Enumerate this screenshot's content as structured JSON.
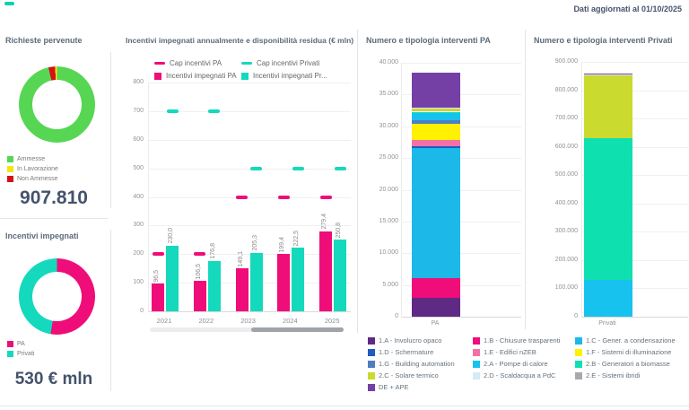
{
  "header": {
    "updated_text": "Dati aggiornati al 01/10/2025"
  },
  "colors": {
    "accent_teal": "#00d3b0",
    "pink": "#ef0d79",
    "teal": "#14d9bd",
    "green": "#57d653",
    "yellow": "#f2e713",
    "red": "#d41114",
    "title_text": "#5b6b7b",
    "big_number_text": "#44536b"
  },
  "chart_data": [
    {
      "type": "pie",
      "title": "Richieste pervenute",
      "total": "907.810",
      "slices": [
        {
          "label": "Ammesse",
          "pct": 96.4,
          "color": "#57d653"
        },
        {
          "label": "Non Ammesse",
          "pct": 2.8,
          "color": "#d41114"
        },
        {
          "label": "In Lavorazione",
          "pct": 0.8,
          "color": "#f2e713"
        }
      ],
      "legend": [
        {
          "label": "Ammesse",
          "color": "#57d653"
        },
        {
          "label": "In Lavorazione",
          "color": "#f2e713"
        },
        {
          "label": "Non Ammesse",
          "color": "#d41114"
        }
      ]
    },
    {
      "type": "pie",
      "title": "Incentivi impegnati",
      "total": "530 € mln",
      "slices": [
        {
          "label": "PA",
          "pct": 52.7,
          "color": "#ef0d79"
        },
        {
          "label": "Privati",
          "pct": 47.3,
          "color": "#14d9bd"
        }
      ],
      "legend": [
        {
          "label": "PA",
          "color": "#ef0d79"
        },
        {
          "label": "Privati",
          "color": "#14d9bd"
        }
      ]
    },
    {
      "type": "bar",
      "title": "Incentivi impegnati annualmente e disponibilità residua (€ mln)",
      "categories": [
        "2021",
        "2022",
        "2023",
        "2024",
        "2025"
      ],
      "series": [
        {
          "name": "Incentivi impegnati PA",
          "color": "#ef0d79",
          "values": [
            96.5,
            106.5,
            149.1,
            199.4,
            279.4
          ],
          "value_labels": [
            "96,5",
            "106,5",
            "149,1",
            "199,4",
            "279,4"
          ]
        },
        {
          "name": "Incentivi impegnati Privati",
          "color": "#14d9bd",
          "values": [
            230.0,
            176.8,
            205.3,
            222.5,
            250.8
          ],
          "value_labels": [
            "230,0",
            "176,8",
            "205,3",
            "222,5",
            "250,8"
          ]
        }
      ],
      "cap_series": [
        {
          "name": "Cap incentivi PA",
          "color": "#ef0d79",
          "values": [
            200,
            200,
            400,
            400,
            400
          ]
        },
        {
          "name": "Cap incentivi Privati",
          "color": "#14d9bd",
          "values": [
            700,
            700,
            500,
            500,
            500
          ]
        }
      ],
      "legend": [
        {
          "label": "Cap incentivi PA",
          "marker": "dash",
          "color": "#ef0d79"
        },
        {
          "label": "Cap incentivi Privati",
          "marker": "dash",
          "color": "#14d9bd"
        },
        {
          "label": "Incentivi impegnati PA",
          "marker": "square",
          "color": "#ef0d79"
        },
        {
          "label": "Incentivi impegnati Pr...",
          "marker": "square",
          "color": "#14d9bd"
        }
      ],
      "ylim": [
        0,
        800
      ],
      "yticks": [
        "0",
        "100",
        "200",
        "300",
        "400",
        "500",
        "600",
        "700",
        "800"
      ],
      "grid": true,
      "legend_position": "top"
    },
    {
      "type": "bar",
      "stacked": true,
      "title": "Numero e tipologia interventi PA",
      "categories": [
        "PA"
      ],
      "ylim": [
        0,
        40000
      ],
      "yticks": [
        "0",
        "5.000",
        "10.000",
        "15.000",
        "20.000",
        "25.000",
        "30.000",
        "35.000",
        "40.000"
      ],
      "grid": true,
      "segments": [
        {
          "label": "1.A - Involucro opaco",
          "value": 3000,
          "color": "#5f2a84"
        },
        {
          "label": "1.B - Chiusure trasparenti",
          "value": 3100,
          "color": "#ef0d79"
        },
        {
          "label": "1.C - Gener. a condensazione",
          "value": 20500,
          "color": "#1cb8e8"
        },
        {
          "label": "1.D - Schermature",
          "value": 300,
          "color": "#1f5bc4"
        },
        {
          "label": "1.E - Edifici nZEB",
          "value": 1000,
          "color": "#f272a5"
        },
        {
          "label": "1.F - Sistemi di illuminazione",
          "value": 2500,
          "color": "#fff100"
        },
        {
          "label": "1.G - Building automation",
          "value": 600,
          "color": "#4d7ec0"
        },
        {
          "label": "2.A - Pompe di calore",
          "value": 1100,
          "color": "#17c2ef"
        },
        {
          "label": "2.B - Generatori a biomasse",
          "value": 200,
          "color": "#0fe0b0"
        },
        {
          "label": "2.C - Solare termico",
          "value": 550,
          "color": "#cada2e"
        },
        {
          "label": "2.D - Scaldacqua a PdC",
          "value": 150,
          "color": "#d6e9f7"
        },
        {
          "label": "DE + APE",
          "value": 5400,
          "color": "#7540a5"
        }
      ]
    },
    {
      "type": "bar",
      "stacked": true,
      "title": "Numero e tipologia interventi Privati",
      "categories": [
        "Privati"
      ],
      "ylim": [
        0,
        900000
      ],
      "yticks": [
        "0",
        "100.000",
        "200.000",
        "300.000",
        "400.000",
        "500.000",
        "600.000",
        "700.000",
        "800.000",
        "900.000"
      ],
      "grid": true,
      "segments": [
        {
          "label": "2.A - Pompe di calore",
          "value": 130000,
          "color": "#17c2ef"
        },
        {
          "label": "2.B - Generatori a biomasse",
          "value": 500000,
          "color": "#0fe0b0"
        },
        {
          "label": "2.C - Solare termico",
          "value": 222000,
          "color": "#cada2e"
        },
        {
          "label": "2.D - Scaldacqua a PdC",
          "value": 3000,
          "color": "#d6e9f7"
        },
        {
          "label": "2.E - Sistemi ibridi",
          "value": 2000,
          "color": "#a7a9ac"
        },
        {
          "label": "DE + APE",
          "value": 2000,
          "color": "#7540a5"
        }
      ]
    }
  ],
  "intervention_legend": {
    "columns": [
      [
        {
          "label": "1.A - Involucro opaco",
          "color": "#5f2a84"
        },
        {
          "label": "1.D - Schermature",
          "color": "#1f5bc4"
        },
        {
          "label": "1.G - Building automation",
          "color": "#4d7ec0"
        },
        {
          "label": "2.C - Solare termico",
          "color": "#cada2e"
        },
        {
          "label": "DE + APE",
          "color": "#7540a5"
        }
      ],
      [
        {
          "label": "1.B - Chiusure trasparenti",
          "color": "#ef0d79"
        },
        {
          "label": "1.E - Edifici nZEB",
          "color": "#f272a5"
        },
        {
          "label": "2.A - Pompe di calore",
          "color": "#17c2ef"
        },
        {
          "label": "2.D - Scaldacqua a PdC",
          "color": "#d6e9f7"
        }
      ],
      [
        {
          "label": "1.C - Gener. a condensazione",
          "color": "#1cb8e8"
        },
        {
          "label": "1.F - Sistemi di illuminazione",
          "color": "#fff100"
        },
        {
          "label": "2.B - Generatori a biomasse",
          "color": "#0fe0b0"
        },
        {
          "label": "2.E - Sistemi ibridi",
          "color": "#a7a9ac"
        }
      ]
    ]
  }
}
